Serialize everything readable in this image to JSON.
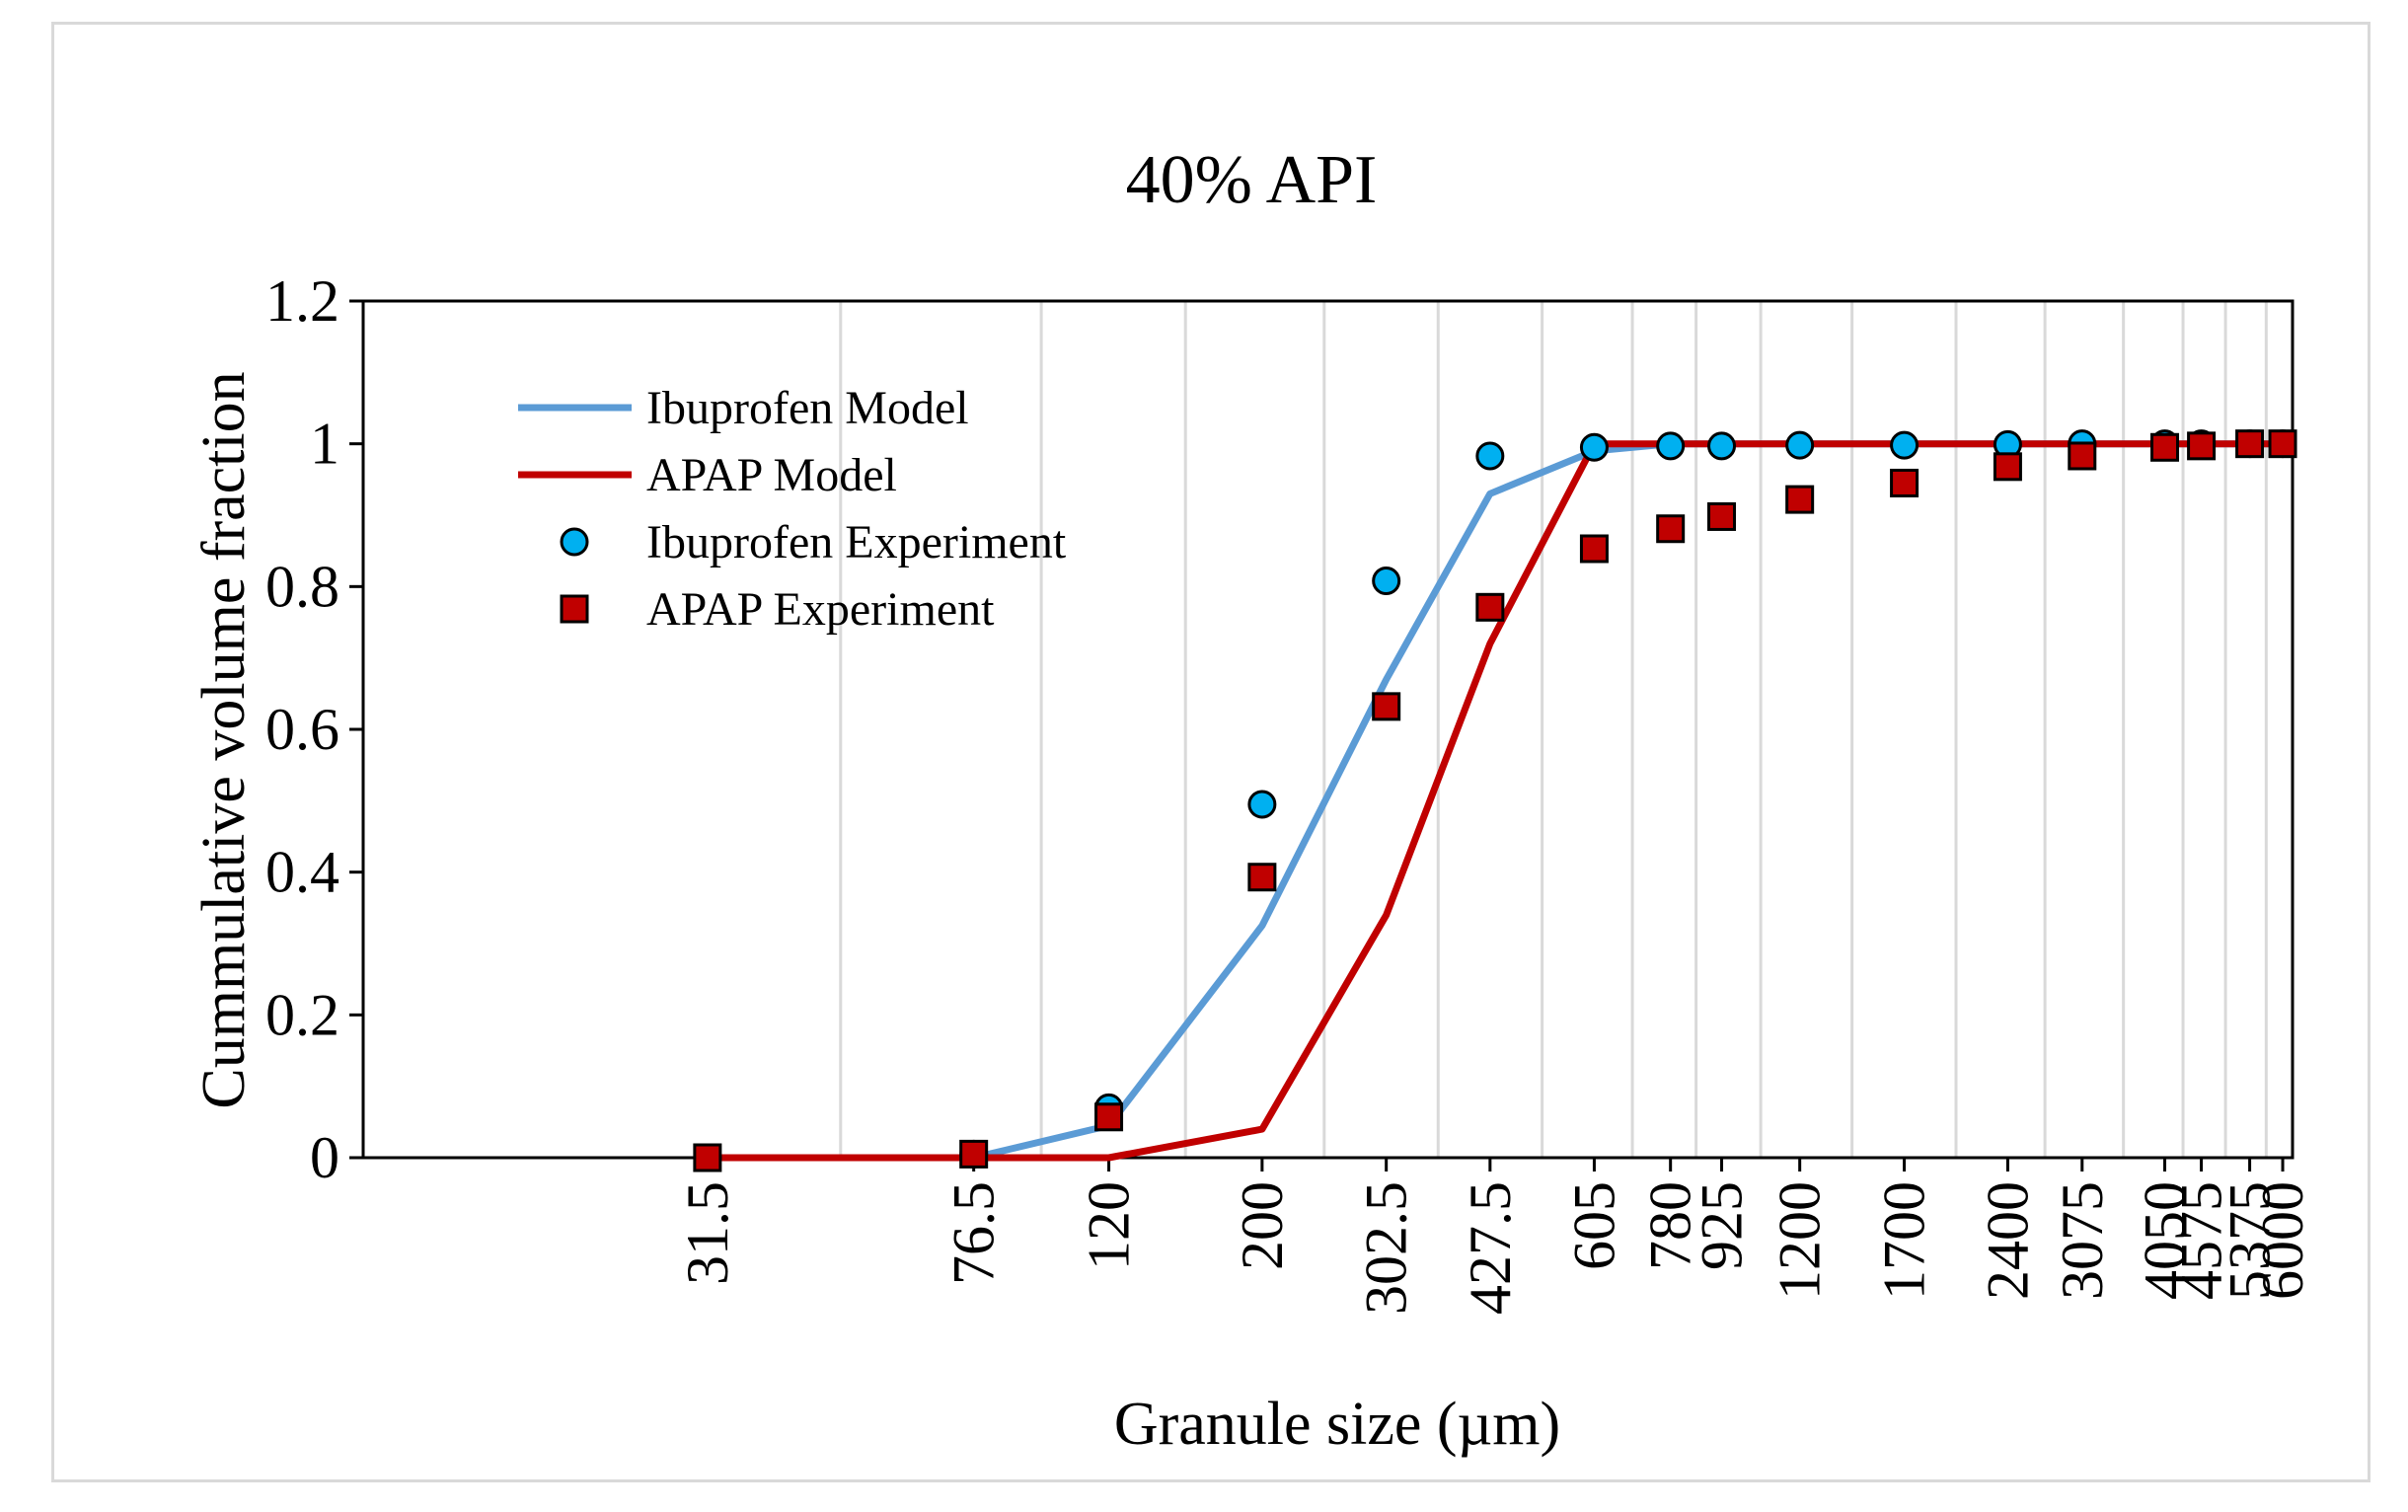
{
  "chart_data": {
    "type": "line",
    "title": "40% API",
    "xlabel": "Granule size (µm)",
    "ylabel": "Cummulative volume fraction",
    "x_scale": "log",
    "categories": [
      "31.5",
      "76.5",
      "120",
      "200",
      "302.5",
      "427.5",
      "605",
      "780",
      "925",
      "1200",
      "1700",
      "2400",
      "3075",
      "4050",
      "4575",
      "5375",
      "6000"
    ],
    "x": [
      31.5,
      76.5,
      120,
      200,
      302.5,
      427.5,
      605,
      780,
      925,
      1200,
      1700,
      2400,
      3075,
      4050,
      4575,
      5375,
      6000
    ],
    "xlim": [
      10,
      6200
    ],
    "ylim": [
      0,
      1.2
    ],
    "yticks": [
      0,
      0.2,
      0.4,
      0.6,
      0.8,
      1,
      1.2
    ],
    "ytick_labels": [
      "0",
      "0.2",
      "0.4",
      "0.6",
      "0.8",
      "1",
      "1.2"
    ],
    "grid": "vertical",
    "legend_position": "top-left",
    "series": [
      {
        "name": "Ibuprofen Model",
        "kind": "line",
        "color": "#5b9bd5",
        "x": [
          31.5,
          76.5,
          120,
          200,
          302.5,
          427.5,
          605,
          780,
          925,
          1200,
          1700,
          2400,
          3075,
          4050,
          4575,
          5375,
          6000
        ],
        "values": [
          0,
          0,
          0.045,
          0.325,
          0.67,
          0.93,
          0.99,
          1,
          1,
          1,
          1,
          1,
          1,
          1,
          1,
          1,
          1
        ]
      },
      {
        "name": "APAP Model",
        "kind": "line",
        "color": "#c00000",
        "x": [
          31.5,
          76.5,
          120,
          200,
          302.5,
          427.5,
          605,
          780,
          925,
          1200,
          1700,
          2400,
          3075,
          4050,
          4575,
          5375,
          6000
        ],
        "values": [
          0,
          0,
          0,
          0.04,
          0.34,
          0.72,
          1,
          1,
          1,
          1,
          1,
          1,
          1,
          1,
          1,
          1,
          1
        ]
      },
      {
        "name": "Ibuprofen Experiment",
        "kind": "scatter",
        "marker": "circle",
        "color": "#00b0f0",
        "x": [
          31.5,
          76.5,
          120,
          200,
          302.5,
          427.5,
          605,
          780,
          925,
          1200,
          1700,
          2400,
          3075,
          4050,
          4575,
          5375,
          6000
        ],
        "values": [
          0,
          0.005,
          0.07,
          0.495,
          0.808,
          0.983,
          0.995,
          0.997,
          0.997,
          0.998,
          0.998,
          0.999,
          1,
          1,
          1,
          1,
          1
        ]
      },
      {
        "name": "APAP Experiment",
        "kind": "scatter",
        "marker": "square",
        "color": "#c00000",
        "x": [
          31.5,
          76.5,
          120,
          200,
          302.5,
          427.5,
          605,
          780,
          925,
          1200,
          1700,
          2400,
          3075,
          4050,
          4575,
          5375,
          6000
        ],
        "values": [
          0,
          0.005,
          0.057,
          0.393,
          0.632,
          0.771,
          0.853,
          0.881,
          0.898,
          0.922,
          0.945,
          0.968,
          0.983,
          0.995,
          0.997,
          1,
          1
        ]
      }
    ]
  }
}
